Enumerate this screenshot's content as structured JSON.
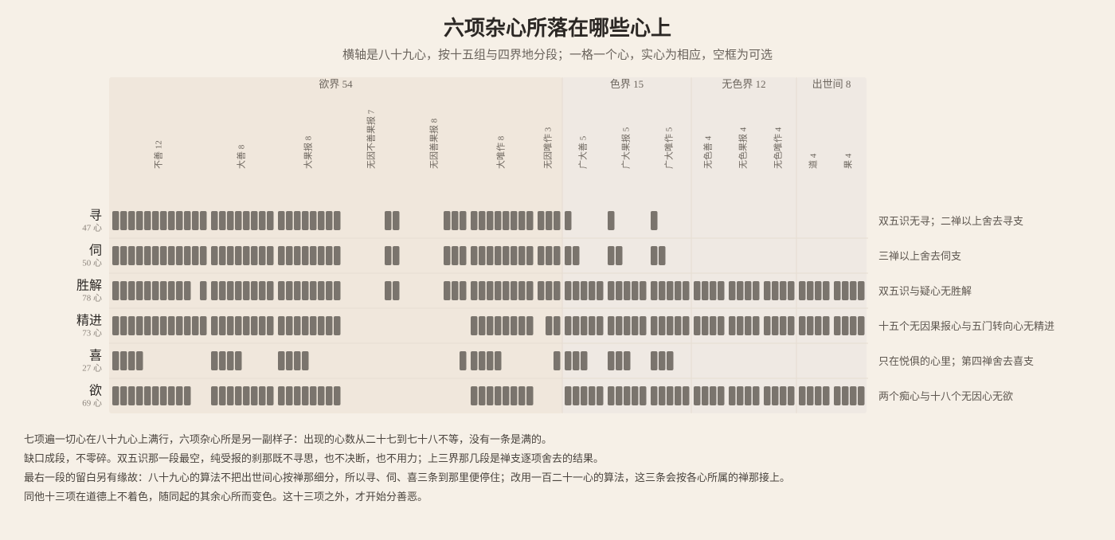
{
  "header": {
    "title": "六项杂心所落在哪些心上",
    "subtitle": "横轴是八十九心，按十五组与四界地分段；一格一个心，实心为相应，空框为可选"
  },
  "realms": [
    {
      "label": "欲界 54",
      "groups": [
        {
          "label": "不善 12"
        },
        {
          "label": "大善 8"
        },
        {
          "label": "大果报 8"
        },
        {
          "label": "无因不善果报 7"
        },
        {
          "label": "无因善果报 8"
        },
        {
          "label": "大唯作 8"
        },
        {
          "label": "无因唯作 3"
        }
      ]
    },
    {
      "label": "色界 15",
      "groups": [
        {
          "label": "广大善 5"
        },
        {
          "label": "广大果报 5"
        },
        {
          "label": "广大唯作 5"
        }
      ]
    },
    {
      "label": "无色界 12",
      "groups": [
        {
          "label": "无色善 4"
        },
        {
          "label": "无色果报 4"
        },
        {
          "label": "无色唯作 4"
        }
      ]
    },
    {
      "label": "出世间 8",
      "groups": [
        {
          "label": "道 4"
        },
        {
          "label": "果 4"
        }
      ]
    }
  ],
  "rows": [
    {
      "name": "寻",
      "count": "47 心",
      "note": "双五识无寻；二禅以上舍去寻支",
      "cells": [
        [
          1,
          1,
          1,
          1,
          1,
          1,
          1,
          1,
          1,
          1,
          1,
          1
        ],
        [
          1,
          1,
          1,
          1,
          1,
          1,
          1,
          1
        ],
        [
          1,
          1,
          1,
          1,
          1,
          1,
          1,
          1
        ],
        [
          0,
          0,
          0,
          0,
          0,
          1,
          1
        ],
        [
          0,
          0,
          0,
          0,
          0,
          1,
          1,
          1
        ],
        [
          1,
          1,
          1,
          1,
          1,
          1,
          1,
          1
        ],
        [
          1,
          1,
          1
        ],
        [
          1,
          0,
          0,
          0,
          0
        ],
        [
          1,
          0,
          0,
          0,
          0
        ],
        [
          1,
          0,
          0,
          0,
          0
        ],
        [
          0,
          0,
          0,
          0
        ],
        [
          0,
          0,
          0,
          0
        ],
        [
          0,
          0,
          0,
          0
        ],
        [
          0,
          0,
          0,
          0
        ],
        [
          0,
          0,
          0,
          0
        ]
      ]
    },
    {
      "name": "伺",
      "count": "50 心",
      "note": "三禅以上舍去伺支",
      "cells": [
        [
          1,
          1,
          1,
          1,
          1,
          1,
          1,
          1,
          1,
          1,
          1,
          1
        ],
        [
          1,
          1,
          1,
          1,
          1,
          1,
          1,
          1
        ],
        [
          1,
          1,
          1,
          1,
          1,
          1,
          1,
          1
        ],
        [
          0,
          0,
          0,
          0,
          0,
          1,
          1
        ],
        [
          0,
          0,
          0,
          0,
          0,
          1,
          1,
          1
        ],
        [
          1,
          1,
          1,
          1,
          1,
          1,
          1,
          1
        ],
        [
          1,
          1,
          1
        ],
        [
          1,
          1,
          0,
          0,
          0
        ],
        [
          1,
          1,
          0,
          0,
          0
        ],
        [
          1,
          1,
          0,
          0,
          0
        ],
        [
          0,
          0,
          0,
          0
        ],
        [
          0,
          0,
          0,
          0
        ],
        [
          0,
          0,
          0,
          0
        ],
        [
          0,
          0,
          0,
          0
        ],
        [
          0,
          0,
          0,
          0
        ]
      ]
    },
    {
      "name": "胜解",
      "count": "78 心",
      "note": "双五识与疑心无胜解",
      "cells": [
        [
          1,
          1,
          1,
          1,
          1,
          1,
          1,
          1,
          1,
          1,
          0,
          1
        ],
        [
          1,
          1,
          1,
          1,
          1,
          1,
          1,
          1
        ],
        [
          1,
          1,
          1,
          1,
          1,
          1,
          1,
          1
        ],
        [
          0,
          0,
          0,
          0,
          0,
          1,
          1
        ],
        [
          0,
          0,
          0,
          0,
          0,
          1,
          1,
          1
        ],
        [
          1,
          1,
          1,
          1,
          1,
          1,
          1,
          1
        ],
        [
          1,
          1,
          1
        ],
        [
          1,
          1,
          1,
          1,
          1
        ],
        [
          1,
          1,
          1,
          1,
          1
        ],
        [
          1,
          1,
          1,
          1,
          1
        ],
        [
          1,
          1,
          1,
          1
        ],
        [
          1,
          1,
          1,
          1
        ],
        [
          1,
          1,
          1,
          1
        ],
        [
          1,
          1,
          1,
          1
        ],
        [
          1,
          1,
          1,
          1
        ]
      ]
    },
    {
      "name": "精进",
      "count": "73 心",
      "note": "十五个无因果报心与五门转向心无精进",
      "cells": [
        [
          1,
          1,
          1,
          1,
          1,
          1,
          1,
          1,
          1,
          1,
          1,
          1
        ],
        [
          1,
          1,
          1,
          1,
          1,
          1,
          1,
          1
        ],
        [
          1,
          1,
          1,
          1,
          1,
          1,
          1,
          1
        ],
        [
          0,
          0,
          0,
          0,
          0,
          0,
          0
        ],
        [
          0,
          0,
          0,
          0,
          0,
          0,
          0,
          0
        ],
        [
          1,
          1,
          1,
          1,
          1,
          1,
          1,
          1
        ],
        [
          0,
          1,
          1
        ],
        [
          1,
          1,
          1,
          1,
          1
        ],
        [
          1,
          1,
          1,
          1,
          1
        ],
        [
          1,
          1,
          1,
          1,
          1
        ],
        [
          1,
          1,
          1,
          1
        ],
        [
          1,
          1,
          1,
          1
        ],
        [
          1,
          1,
          1,
          1
        ],
        [
          1,
          1,
          1,
          1
        ],
        [
          1,
          1,
          1,
          1
        ]
      ]
    },
    {
      "name": "喜",
      "count": "27 心",
      "note": "只在悦俱的心里；第四禅舍去喜支",
      "cells": [
        [
          1,
          1,
          1,
          1,
          0,
          0,
          0,
          0,
          0,
          0,
          0,
          0
        ],
        [
          1,
          1,
          1,
          1,
          0,
          0,
          0,
          0
        ],
        [
          1,
          1,
          1,
          1,
          0,
          0,
          0,
          0
        ],
        [
          0,
          0,
          0,
          0,
          0,
          0,
          0
        ],
        [
          0,
          0,
          0,
          0,
          0,
          0,
          0,
          1
        ],
        [
          1,
          1,
          1,
          1,
          0,
          0,
          0,
          0
        ],
        [
          0,
          0,
          1
        ],
        [
          1,
          1,
          1,
          0,
          0
        ],
        [
          1,
          1,
          1,
          0,
          0
        ],
        [
          1,
          1,
          1,
          0,
          0
        ],
        [
          0,
          0,
          0,
          0
        ],
        [
          0,
          0,
          0,
          0
        ],
        [
          0,
          0,
          0,
          0
        ],
        [
          0,
          0,
          0,
          0
        ],
        [
          0,
          0,
          0,
          0
        ]
      ]
    },
    {
      "name": "欲",
      "count": "69 心",
      "note": "两个痴心与十八个无因心无欲",
      "cells": [
        [
          1,
          1,
          1,
          1,
          1,
          1,
          1,
          1,
          1,
          1,
          0,
          0
        ],
        [
          1,
          1,
          1,
          1,
          1,
          1,
          1,
          1
        ],
        [
          1,
          1,
          1,
          1,
          1,
          1,
          1,
          1
        ],
        [
          0,
          0,
          0,
          0,
          0,
          0,
          0
        ],
        [
          0,
          0,
          0,
          0,
          0,
          0,
          0,
          0
        ],
        [
          1,
          1,
          1,
          1,
          1,
          1,
          1,
          1
        ],
        [
          0,
          0,
          0
        ],
        [
          1,
          1,
          1,
          1,
          1
        ],
        [
          1,
          1,
          1,
          1,
          1
        ],
        [
          1,
          1,
          1,
          1,
          1
        ],
        [
          1,
          1,
          1,
          1
        ],
        [
          1,
          1,
          1,
          1
        ],
        [
          1,
          1,
          1,
          1
        ],
        [
          1,
          1,
          1,
          1
        ],
        [
          1,
          1,
          1,
          1
        ]
      ]
    }
  ],
  "footer": [
    "七项遍一切心在八十九心上满行，六项杂心所是另一副样子：出现的心数从二十七到七十八不等，没有一条是满的。",
    "缺口成段，不零碎。双五识那一段最空，纯受报的刹那既不寻思，也不决断，也不用力；上三界那几段是禅支逐项舍去的结果。",
    "最右一段的留白另有缘故：八十九心的算法不把出世间心按禅那细分，所以寻、伺、喜三条到那里便停住；改用一百二十一心的算法，这三条会按各心所属的禅那接上。",
    "同他十三项在道德上不着色，随同起的其余心所而变色。这十三项之外，才开始分善恶。"
  ]
}
